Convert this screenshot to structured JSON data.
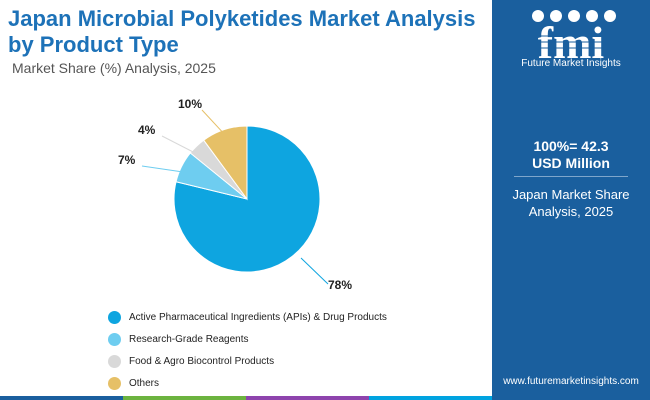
{
  "header": {
    "title": "Japan Microbial Polyketides Market Analysis by Product Type",
    "subtitle": "Market Share (%) Analysis, 2025"
  },
  "side_panel": {
    "brand": "Future Market Insights",
    "total_line1": "100%= 42.3",
    "total_line2": "USD Million",
    "share_line1": "Japan Market Share",
    "share_line2": "Analysis, 2025",
    "url": "www.futuremarketinsights.com"
  },
  "chart_data": {
    "type": "pie",
    "slices": [
      {
        "name": "Active Pharmaceutical Ingredients (APIs) & Drug Products",
        "value": 78,
        "label": "78%",
        "color": "#0ea5e0"
      },
      {
        "name": "Research-Grade Reagents",
        "value": 7,
        "label": "7%",
        "color": "#6ecdf0"
      },
      {
        "name": "Food & Agro Biocontrol Products",
        "value": 4,
        "label": "4%",
        "color": "#d9d9d9"
      },
      {
        "name": "Others",
        "value": 10,
        "label": "10%",
        "color": "#e6c067"
      }
    ]
  },
  "colors": {
    "title": "#1d72b8",
    "panel": "#1a5f9e",
    "bottom_bar": [
      "#1a5f9e",
      "#6cb33f",
      "#8e44ad",
      "#00a3e0"
    ]
  }
}
